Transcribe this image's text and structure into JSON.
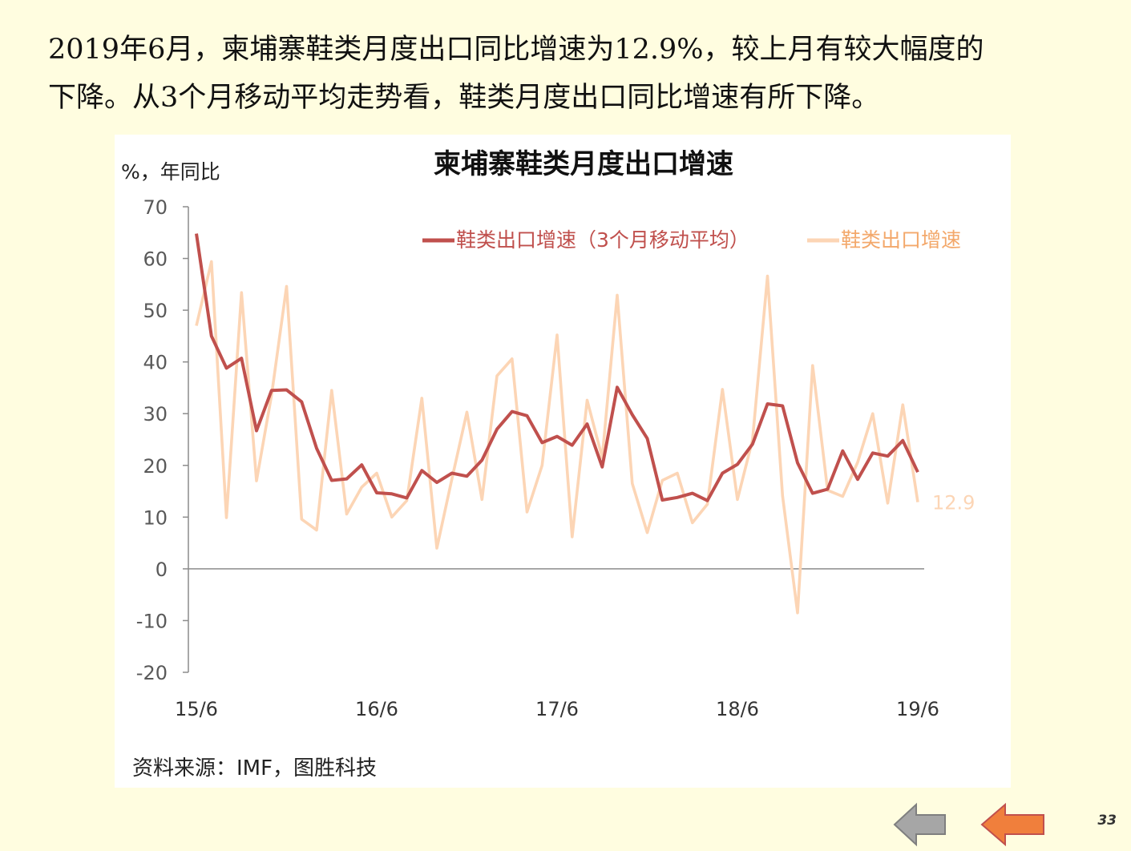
{
  "slide": {
    "text_line1": "2019年6月，柬埔寨鞋类月度出口同比增速为12.9%，较上月有较大幅度的",
    "text_line2": "下降。从3个月移动平均走势看，鞋类月度出口同比增速有所下降。",
    "source": "资料来源：IMF，图胜科技",
    "page_number": "33",
    "colors": {
      "background": "#FFFDE0",
      "nav_back": "#A6A6A6",
      "nav_forward": "#F07F3C"
    },
    "nav": {
      "back_icon": "left-arrow-icon",
      "forward_icon": "left-arrow-icon"
    }
  },
  "chart_data": {
    "type": "line",
    "title": "柬埔寨鞋类月度出口增速",
    "ylabel": "%，年同比",
    "ylim": [
      -20,
      70
    ],
    "yticks": [
      -20,
      -10,
      0,
      10,
      20,
      30,
      40,
      50,
      60,
      70
    ],
    "x_tick_labels": [
      "15/6",
      "16/6",
      "17/6",
      "18/6",
      "19/6"
    ],
    "x_tick_index": [
      0,
      12,
      24,
      36,
      48
    ],
    "legend_position": "top-right",
    "series": [
      {
        "name": "鞋类出口增速（3个月移动平均）",
        "color": "#C0504D",
        "values": [
          64.8,
          45,
          38.8,
          40.7,
          26.7,
          34.5,
          34.6,
          32.3,
          23.3,
          17.1,
          17.4,
          20.1,
          14.7,
          14.5,
          13.7,
          19,
          16.7,
          18.5,
          17.9,
          21,
          27,
          30.4,
          29.6,
          24.4,
          25.6,
          23.9,
          28,
          19.7,
          35.1,
          29.8,
          25.2,
          13.3,
          13.8,
          14.6,
          13.2,
          18.5,
          20.2,
          24.1,
          31.9,
          31.5,
          20.5,
          14.6,
          15.4,
          22.8,
          17.3,
          22.4,
          21.8,
          24.8,
          18.7
        ]
      },
      {
        "name": "鞋类出口增速",
        "color": "#FCD5B5",
        "values": [
          47,
          59.4,
          9.9,
          53.4,
          17,
          33.6,
          54.6,
          9.6,
          7.5,
          34.5,
          10.6,
          15.8,
          18.5,
          10,
          13.2,
          33,
          4,
          17.4,
          30.3,
          13.4,
          37.3,
          40.6,
          11,
          20,
          45.2,
          6.2,
          32.6,
          21.5,
          52.9,
          16.5,
          7,
          17.1,
          18.5,
          8.9,
          12.5,
          34.7,
          13.4,
          24.9,
          56.6,
          14.1,
          -8.5,
          39.3,
          15.2,
          14,
          20.6,
          30,
          12.7,
          31.7,
          12.9
        ]
      }
    ],
    "data_labels": [
      {
        "series": 1,
        "index": 48,
        "text": "12.9"
      }
    ]
  }
}
